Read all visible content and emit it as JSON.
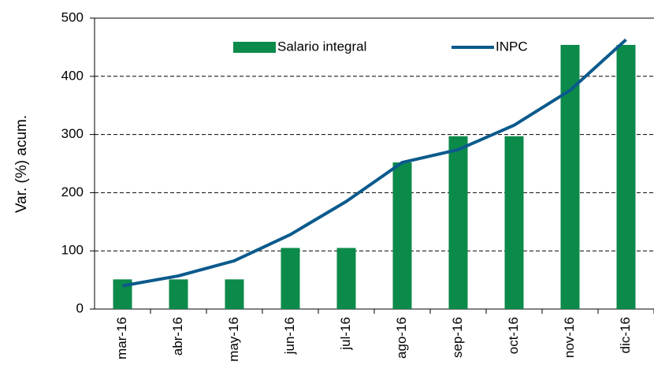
{
  "chart_data": {
    "type": "bar_line",
    "y_label": "Var. (%) acum.",
    "categories": [
      "mar-16",
      "abr-16",
      "may-16",
      "jun-16",
      "jul-16",
      "ago-16",
      "sep-16",
      "oct-16",
      "nov-16",
      "dic-16"
    ],
    "series": [
      {
        "name": "Salario integral",
        "type": "bar",
        "color": "#0b8a4a",
        "values": [
          51,
          51,
          51,
          105,
          105,
          252,
          297,
          297,
          454,
          454
        ]
      },
      {
        "name": "INPC",
        "type": "line",
        "color": "#0b5a8c",
        "values": [
          40,
          57,
          83,
          128,
          185,
          252,
          274,
          316,
          376,
          463
        ]
      }
    ],
    "ylim": [
      0,
      500
    ],
    "yticks": [
      0,
      100,
      200,
      300,
      400,
      500
    ],
    "grid": true
  }
}
